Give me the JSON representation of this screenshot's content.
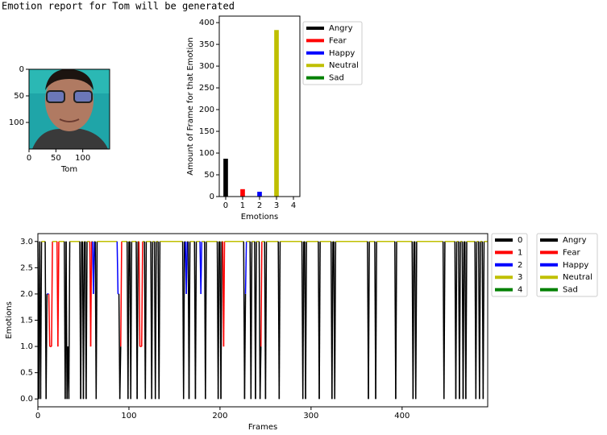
{
  "header": {
    "text": "Emotion report for Tom will be generated"
  },
  "chart_data": [
    {
      "type": "image",
      "xlabel": "Tom",
      "xlim": [
        0,
        150
      ],
      "ylim": [
        150,
        0
      ],
      "xticks": [
        0,
        50,
        100
      ],
      "yticks": [
        0,
        50,
        100
      ]
    },
    {
      "type": "bar",
      "xlabel": "Emotions",
      "ylabel": "Amount of Frame for that Emotion",
      "x": [
        0,
        1,
        2,
        3,
        4
      ],
      "values": [
        87,
        17,
        11,
        383,
        0
      ],
      "colors": [
        "#000000",
        "#ff0000",
        "#0000ff",
        "#bfbf00",
        "#008000"
      ],
      "legend": [
        "Angry",
        "Fear",
        "Happy",
        "Neutral",
        "Sad"
      ],
      "xlim": [
        -0.38,
        4.38
      ],
      "ylim": [
        0,
        415
      ],
      "xticks": [
        0,
        1,
        2,
        3,
        4
      ],
      "yticks": [
        0,
        50,
        100,
        150,
        200,
        250,
        300,
        350,
        400
      ]
    },
    {
      "type": "line",
      "xlabel": "Frames",
      "ylabel": "Emotions",
      "x": [
        0,
        1,
        2,
        3,
        4,
        8,
        9,
        10,
        12,
        13,
        15,
        16,
        21,
        22,
        23,
        29,
        30,
        31,
        32,
        33,
        34,
        35,
        46,
        47,
        48,
        49,
        50,
        51,
        52,
        53,
        54,
        57,
        58,
        59,
        60,
        61,
        62,
        63,
        64,
        65,
        87,
        88,
        89,
        90,
        91,
        92,
        98,
        99,
        100,
        101,
        102,
        103,
        108,
        109,
        110,
        111,
        112,
        114,
        115,
        117,
        118,
        119,
        124,
        125,
        126,
        128,
        129,
        130,
        132,
        133,
        134,
        159,
        160,
        161,
        162,
        163,
        164,
        165,
        166,
        167,
        172,
        173,
        174,
        178,
        179,
        180,
        183,
        184,
        185,
        197,
        198,
        199,
        200,
        201,
        202,
        203,
        204,
        205,
        226,
        227,
        228,
        229,
        233,
        234,
        235,
        238,
        239,
        240,
        243,
        244,
        245,
        246,
        249,
        250,
        251,
        264,
        265,
        266,
        290,
        291,
        292,
        293,
        294,
        295,
        308,
        309,
        310,
        322,
        323,
        324,
        325,
        326,
        327,
        362,
        363,
        364,
        370,
        371,
        372,
        392,
        393,
        394,
        411,
        412,
        413,
        414,
        415,
        416,
        445,
        446,
        447,
        458,
        459,
        460,
        462,
        463,
        464,
        466,
        467,
        468,
        469,
        470,
        471,
        480,
        481,
        482,
        484,
        485,
        486,
        488,
        489,
        490,
        494
      ],
      "values": [
        3,
        0,
        3,
        0,
        3,
        3,
        0,
        2,
        2,
        1,
        1,
        3,
        3,
        1,
        3,
        3,
        0,
        3,
        0,
        1,
        0,
        3,
        3,
        0,
        3,
        3,
        0,
        3,
        3,
        0,
        3,
        3,
        1,
        3,
        3,
        2,
        3,
        3,
        0,
        3,
        3,
        2,
        2,
        0,
        1,
        3,
        3,
        0,
        3,
        3,
        0,
        3,
        3,
        0,
        3,
        3,
        1,
        1,
        3,
        3,
        0,
        3,
        3,
        0,
        3,
        3,
        0,
        3,
        3,
        0,
        3,
        3,
        0,
        3,
        3,
        2,
        3,
        3,
        0,
        3,
        3,
        0,
        3,
        3,
        2,
        3,
        3,
        0,
        3,
        3,
        0,
        3,
        3,
        0,
        3,
        3,
        1,
        3,
        3,
        0,
        2,
        3,
        3,
        0,
        3,
        3,
        0,
        3,
        3,
        0,
        1,
        3,
        3,
        0,
        3,
        3,
        0,
        3,
        3,
        0,
        3,
        3,
        0,
        3,
        3,
        0,
        3,
        3,
        0,
        3,
        3,
        0,
        3,
        3,
        0,
        3,
        3,
        0,
        3,
        3,
        0,
        3,
        3,
        0,
        3,
        3,
        0,
        3,
        3,
        0,
        3,
        3,
        0,
        3,
        3,
        0,
        3,
        3,
        0,
        3,
        3,
        0,
        3,
        3,
        0,
        3,
        3,
        0,
        3,
        3,
        0,
        3,
        3
      ],
      "colors": [
        "#000000",
        "#ff0000",
        "#0000ff",
        "#bfbf00",
        "#008000"
      ],
      "legends": [
        [
          "0",
          "1",
          "2",
          "3",
          "4"
        ],
        [
          "Angry",
          "Fear",
          "Happy",
          "Neutral",
          "Sad"
        ]
      ],
      "xlim": [
        0,
        494
      ],
      "ylim": [
        -0.15,
        3.15
      ],
      "xticks": [
        0,
        100,
        200,
        300,
        400
      ],
      "yticks": [
        {
          "value": 0,
          "label": "0.0"
        },
        {
          "value": 0.5,
          "label": "0.5"
        },
        {
          "value": 1,
          "label": "1.0"
        },
        {
          "value": 1.5,
          "label": "1.5"
        },
        {
          "value": 2,
          "label": "2.0"
        },
        {
          "value": 2.5,
          "label": "2.5"
        },
        {
          "value": 3,
          "label": "3.0"
        }
      ]
    }
  ]
}
